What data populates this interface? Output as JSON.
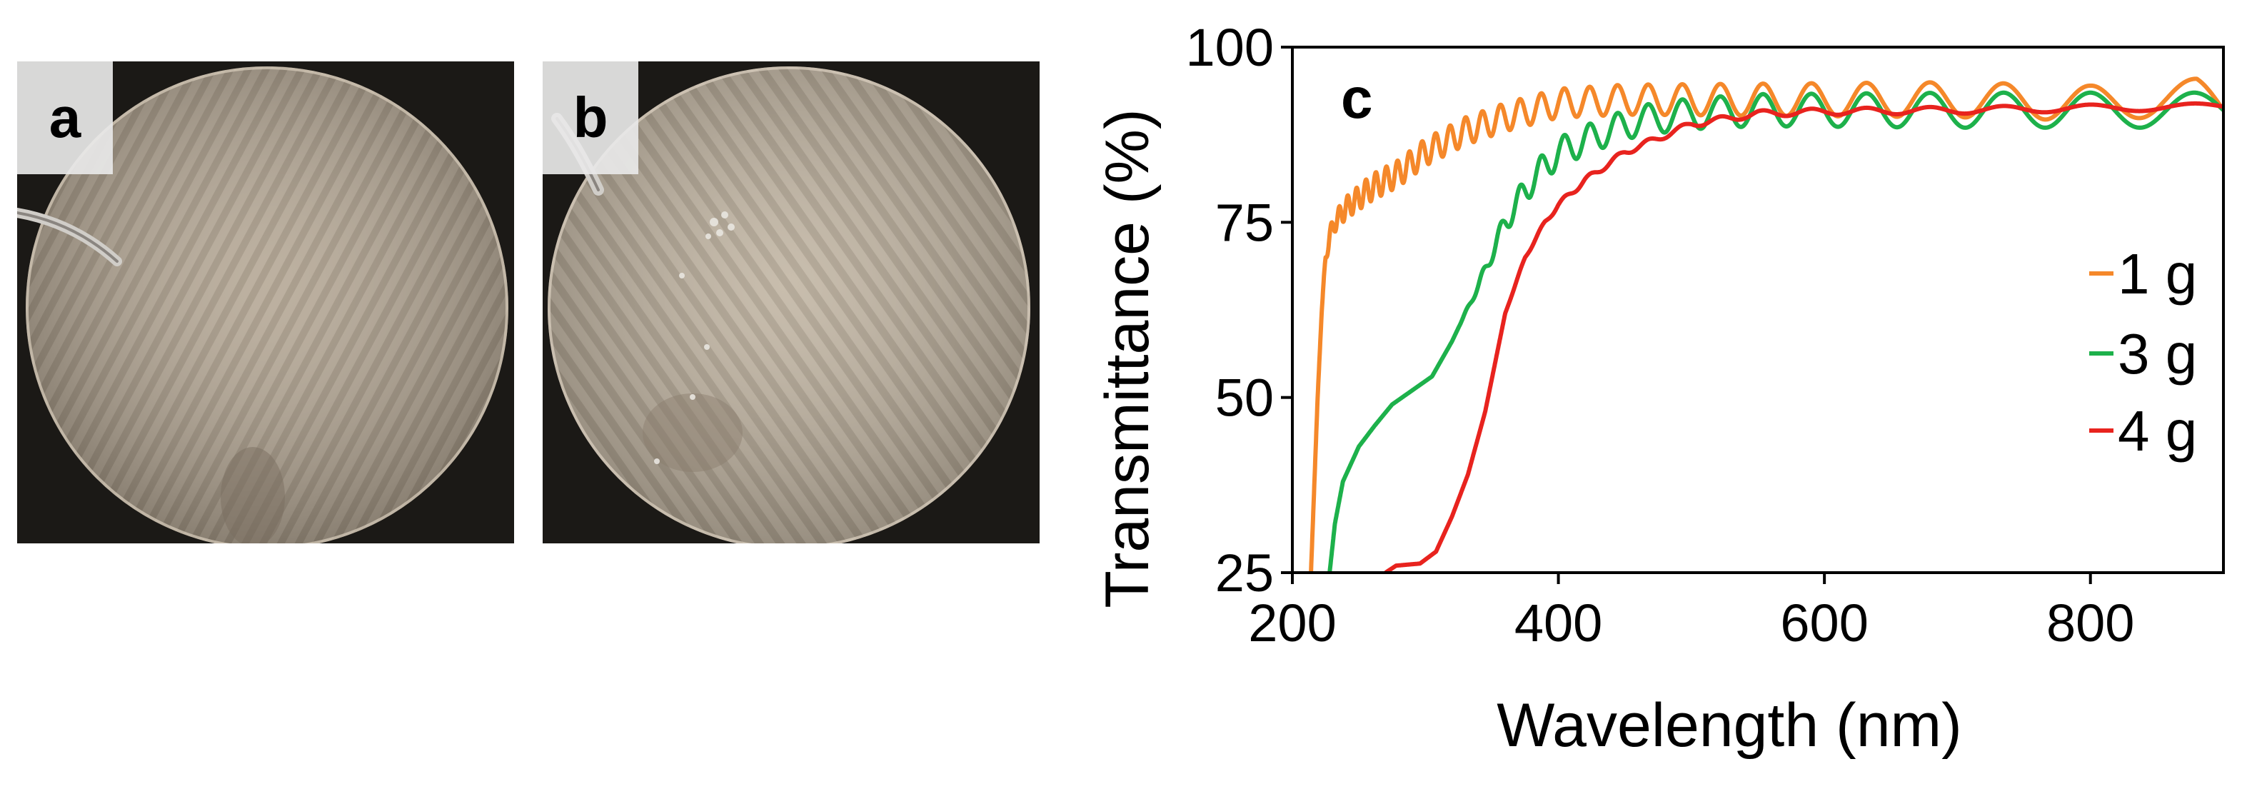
{
  "panels": {
    "a": {
      "label": "a"
    },
    "b": {
      "label": "b"
    }
  },
  "chart_data": {
    "type": "line",
    "panel_label": "c",
    "xlabel": "Wavelength (nm)",
    "ylabel": "Transmittance (%)",
    "xlim": [
      200,
      900
    ],
    "ylim": [
      25,
      100
    ],
    "xticks": [
      200,
      400,
      600,
      800
    ],
    "yticks": [
      25,
      50,
      75,
      100
    ],
    "grid": false,
    "legend_position": "right",
    "series": [
      {
        "name": "1 g",
        "label": "1 g",
        "color": "#f5882a",
        "fringe_amplitude": 2.5,
        "points": [
          [
            214,
            25
          ],
          [
            216,
            35
          ],
          [
            219,
            50
          ],
          [
            222,
            62
          ],
          [
            225,
            70
          ],
          [
            228,
            73
          ],
          [
            232,
            75
          ],
          [
            240,
            77
          ],
          [
            260,
            80
          ],
          [
            280,
            82
          ],
          [
            300,
            85
          ],
          [
            330,
            88
          ],
          [
            360,
            90
          ],
          [
            400,
            92
          ],
          [
            450,
            92.5
          ],
          [
            500,
            92.5
          ],
          [
            600,
            92.5
          ],
          [
            700,
            92.5
          ],
          [
            800,
            92
          ],
          [
            850,
            92.5
          ],
          [
            880,
            93
          ],
          [
            900,
            91
          ]
        ]
      },
      {
        "name": "3 g",
        "label": "3 g",
        "color": "#1db14b",
        "fringe_amplitude": 2.5,
        "points": [
          [
            228,
            25
          ],
          [
            232,
            32
          ],
          [
            238,
            38
          ],
          [
            250,
            43
          ],
          [
            262,
            46
          ],
          [
            275,
            49
          ],
          [
            290,
            51
          ],
          [
            305,
            53
          ],
          [
            320,
            58
          ],
          [
            340,
            66
          ],
          [
            360,
            75
          ],
          [
            380,
            81
          ],
          [
            400,
            85
          ],
          [
            430,
            87.5
          ],
          [
            460,
            89.5
          ],
          [
            500,
            90.5
          ],
          [
            550,
            91
          ],
          [
            600,
            91
          ],
          [
            700,
            91
          ],
          [
            800,
            91
          ],
          [
            900,
            91
          ]
        ]
      },
      {
        "name": "4 g",
        "label": "4 g",
        "color": "#e8231e",
        "fringe_amplitude": 0.5,
        "points": [
          [
            270,
            25
          ],
          [
            278,
            26
          ],
          [
            296,
            26.3
          ],
          [
            308,
            28
          ],
          [
            320,
            33
          ],
          [
            332,
            39
          ],
          [
            345,
            48
          ],
          [
            360,
            62
          ],
          [
            375,
            70
          ],
          [
            390,
            75
          ],
          [
            400,
            77.5
          ],
          [
            420,
            81
          ],
          [
            450,
            85
          ],
          [
            500,
            89
          ],
          [
            550,
            90.5
          ],
          [
            600,
            90.8
          ],
          [
            700,
            91
          ],
          [
            800,
            91.3
          ],
          [
            900,
            91.5
          ]
        ]
      }
    ]
  }
}
